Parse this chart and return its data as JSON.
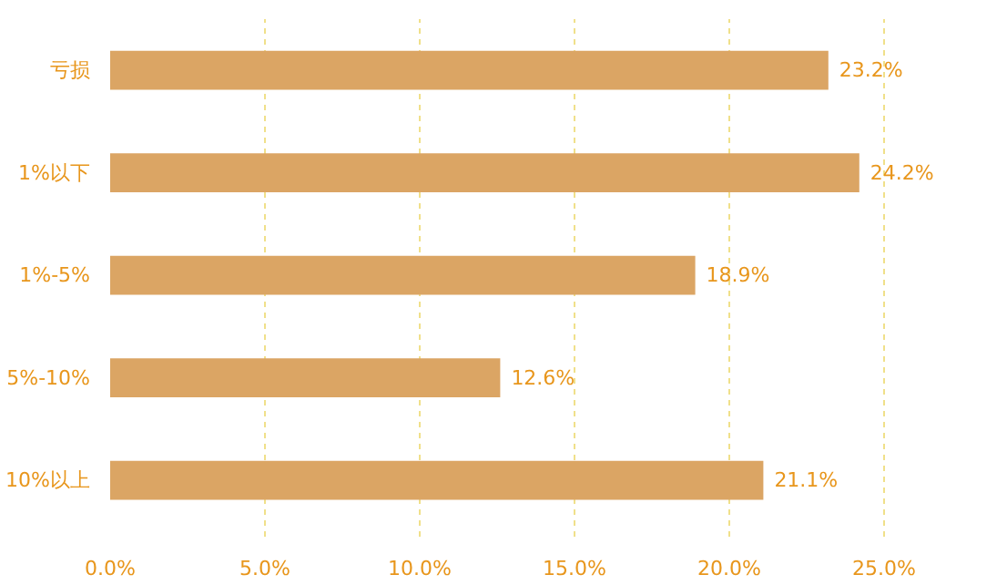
{
  "chart_data": {
    "type": "bar",
    "orientation": "horizontal",
    "categories": [
      "亏损",
      "1%以下",
      "1%-5%",
      "5%-10%",
      "10%以上"
    ],
    "values": [
      23.2,
      24.2,
      18.9,
      12.6,
      21.1
    ],
    "value_labels": [
      "23.2%",
      "24.2%",
      "18.9%",
      "12.6%",
      "21.1%"
    ],
    "color": "#dba564",
    "xlim": [
      0,
      25
    ],
    "xticks": [
      {
        "value": 0,
        "label": "0.0%"
      },
      {
        "value": 5,
        "label": "5.0%"
      },
      {
        "value": 10,
        "label": "10.0%"
      },
      {
        "value": 15,
        "label": "15.0%"
      },
      {
        "value": 20,
        "label": "20.0%"
      },
      {
        "value": 25,
        "label": "25.0%"
      }
    ],
    "grid": "x"
  }
}
